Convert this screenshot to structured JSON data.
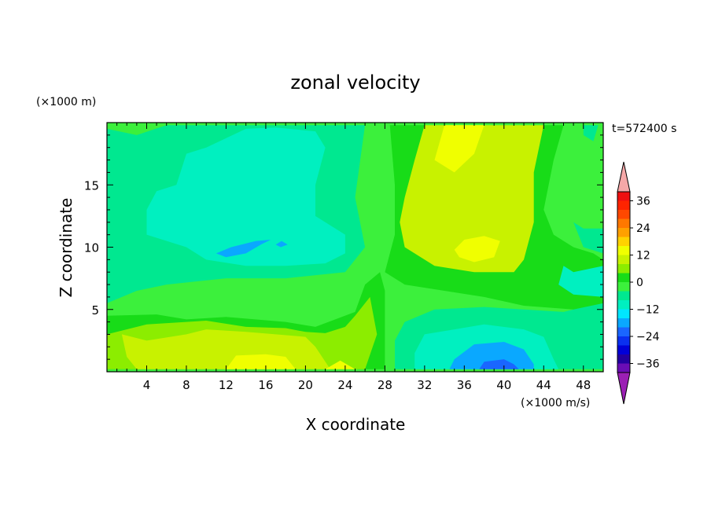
{
  "chart_data": {
    "type": "heatmap",
    "title": "zonal velocity",
    "time_label": "t=572400 s",
    "xlabel": "X coordinate",
    "ylabel": "Z coordinate",
    "x_unit": "(×1000 m/s)",
    "y_unit": "(×1000 m)",
    "xlim": [
      0,
      50
    ],
    "ylim": [
      0,
      20
    ],
    "x_ticks": [
      4,
      8,
      12,
      16,
      20,
      24,
      28,
      32,
      36,
      40,
      44,
      48
    ],
    "x_tick_labels": [
      "4",
      "8",
      "12",
      "16",
      "20",
      "24",
      "28",
      "32",
      "36",
      "40",
      "44",
      "48"
    ],
    "y_ticks": [
      5,
      10,
      15
    ],
    "y_tick_labels": [
      "5",
      "10",
      "15"
    ],
    "colorbar": {
      "levels": [
        -40,
        -36,
        -32,
        -28,
        -24,
        -20,
        -16,
        -12,
        -8,
        -4,
        0,
        4,
        8,
        12,
        16,
        20,
        24,
        28,
        32,
        36,
        40
      ],
      "colors": [
        "#6a0db5",
        "#2200a0",
        "#0000d8",
        "#0a30f0",
        "#1a66ff",
        "#0aa8ff",
        "#00e6ff",
        "#00f0c0",
        "#00e890",
        "#3cf03c",
        "#18dc18",
        "#8ced00",
        "#c8f200",
        "#f0ff00",
        "#ffd200",
        "#ffa000",
        "#ff7800",
        "#ff4800",
        "#ff2400",
        "#f01010"
      ],
      "under_color": "#9b1fb4",
      "over_color": "#f5a8a8",
      "tick_values": [
        -36,
        -24,
        -12,
        0,
        12,
        24,
        36
      ],
      "tick_labels": [
        "−36",
        "−24",
        "−12",
        "0",
        "12",
        "24",
        "36"
      ]
    },
    "regions": [
      {
        "value": -6,
        "points": [
          [
            0,
            5.5
          ],
          [
            3,
            6.5
          ],
          [
            6,
            7
          ],
          [
            12,
            7.5
          ],
          [
            18,
            7.5
          ],
          [
            24,
            8
          ],
          [
            26,
            10
          ],
          [
            25,
            14
          ],
          [
            26,
            19.8
          ],
          [
            24,
            19.8
          ],
          [
            22,
            19.8
          ],
          [
            16,
            19.8
          ],
          [
            10,
            19.8
          ],
          [
            6,
            19.8
          ],
          [
            3,
            19
          ],
          [
            0,
            19.5
          ]
        ]
      },
      {
        "value": -10,
        "points": [
          [
            4,
            13
          ],
          [
            4,
            11
          ],
          [
            8,
            10
          ],
          [
            10,
            9
          ],
          [
            14,
            8.5
          ],
          [
            18,
            8.5
          ],
          [
            22,
            8.7
          ],
          [
            24,
            9.5
          ],
          [
            24,
            11
          ],
          [
            21,
            12.5
          ],
          [
            21,
            15
          ],
          [
            22,
            18
          ],
          [
            21,
            19.3
          ],
          [
            17,
            19.6
          ],
          [
            14,
            19.5
          ],
          [
            10,
            18
          ],
          [
            8,
            17.5
          ],
          [
            7,
            15
          ],
          [
            5,
            14.5
          ]
        ]
      },
      {
        "value": -18,
        "points": [
          [
            11,
            9.5
          ],
          [
            12,
            9.2
          ],
          [
            14,
            9.5
          ],
          [
            15.5,
            10.2
          ],
          [
            16.5,
            10.6
          ],
          [
            15,
            10.5
          ],
          [
            12.5,
            10
          ]
        ]
      },
      {
        "value": -18,
        "points": [
          [
            17,
            10.2
          ],
          [
            17.5,
            10
          ],
          [
            18.2,
            10.2
          ],
          [
            17.6,
            10.5
          ]
        ]
      },
      {
        "value": 2,
        "points": [
          [
            0,
            4.5
          ],
          [
            5,
            4.6
          ],
          [
            8,
            4.2
          ],
          [
            12,
            4.4
          ],
          [
            18,
            4
          ],
          [
            21,
            3.6
          ],
          [
            23,
            4.2
          ],
          [
            25,
            4.8
          ],
          [
            26,
            7
          ],
          [
            27.5,
            8
          ],
          [
            28,
            6.5
          ],
          [
            28,
            0.2
          ],
          [
            0,
            0.2
          ]
        ]
      },
      {
        "value": 6,
        "points": [
          [
            0,
            3
          ],
          [
            4,
            3.8
          ],
          [
            10,
            4.1
          ],
          [
            14,
            3.6
          ],
          [
            18,
            3.5
          ],
          [
            20,
            3.2
          ],
          [
            22,
            3.1
          ],
          [
            24,
            3.6
          ],
          [
            25,
            4.5
          ],
          [
            26.5,
            6
          ],
          [
            27.2,
            3
          ],
          [
            26,
            0.2
          ],
          [
            0,
            0.2
          ]
        ]
      },
      {
        "value": 10,
        "points": [
          [
            1.5,
            3
          ],
          [
            4,
            2.5
          ],
          [
            8,
            3
          ],
          [
            10,
            3.4
          ],
          [
            14,
            3.2
          ],
          [
            17,
            3
          ],
          [
            20,
            2.8
          ],
          [
            21,
            2
          ],
          [
            22.5,
            0.2
          ],
          [
            3,
            0.2
          ],
          [
            2,
            1.2
          ]
        ]
      },
      {
        "value": 14,
        "points": [
          [
            12,
            0.2
          ],
          [
            13,
            1.3
          ],
          [
            16,
            1.4
          ],
          [
            18,
            1.2
          ],
          [
            19,
            0.2
          ]
        ]
      },
      {
        "value": 14,
        "points": [
          [
            22,
            0.2
          ],
          [
            23.5,
            0.9
          ],
          [
            25,
            0.2
          ]
        ]
      },
      {
        "value": -6,
        "points": [
          [
            29,
            0.2
          ],
          [
            29,
            2.5
          ],
          [
            30,
            4
          ],
          [
            33,
            5
          ],
          [
            38,
            5.2
          ],
          [
            42,
            5
          ],
          [
            46,
            4.8
          ],
          [
            48,
            5.2
          ],
          [
            50,
            5.5
          ],
          [
            50,
            0.2
          ]
        ]
      },
      {
        "value": -10,
        "points": [
          [
            31,
            0.2
          ],
          [
            31,
            1.5
          ],
          [
            32,
            3
          ],
          [
            35,
            3.4
          ],
          [
            38,
            3.8
          ],
          [
            42,
            3.4
          ],
          [
            44,
            2.8
          ],
          [
            45,
            1
          ],
          [
            45.5,
            0.2
          ]
        ]
      },
      {
        "value": -18,
        "points": [
          [
            34.5,
            0.2
          ],
          [
            35,
            1
          ],
          [
            37,
            2.2
          ],
          [
            40,
            2.4
          ],
          [
            42,
            1.8
          ],
          [
            43,
            0.6
          ],
          [
            43,
            0.2
          ]
        ]
      },
      {
        "value": -22,
        "points": [
          [
            37.5,
            0.2
          ],
          [
            38,
            0.8
          ],
          [
            40,
            1
          ],
          [
            41,
            0.6
          ],
          [
            41.5,
            0.2
          ]
        ]
      },
      {
        "value": -10,
        "points": [
          [
            45,
            5.8
          ],
          [
            46,
            5.3
          ],
          [
            46.5,
            6
          ],
          [
            45.5,
            6.4
          ]
        ]
      },
      {
        "value": 2,
        "points": [
          [
            28,
            8
          ],
          [
            29,
            11
          ],
          [
            29,
            15
          ],
          [
            28.5,
            19.8
          ],
          [
            46,
            19.8
          ],
          [
            45,
            17
          ],
          [
            44,
            13
          ],
          [
            45,
            11
          ],
          [
            47,
            10
          ],
          [
            49,
            9.5
          ],
          [
            50,
            9
          ],
          [
            50,
            5.5
          ],
          [
            47,
            5
          ],
          [
            42,
            5.3
          ],
          [
            38,
            6
          ],
          [
            34,
            6.5
          ],
          [
            30,
            7
          ]
        ]
      },
      {
        "value": 10,
        "points": [
          [
            29.5,
            12
          ],
          [
            30,
            14
          ],
          [
            31,
            17
          ],
          [
            32,
            19.8
          ],
          [
            44,
            19.8
          ],
          [
            43,
            16
          ],
          [
            43,
            12
          ],
          [
            42,
            9
          ],
          [
            41,
            8
          ],
          [
            37,
            8
          ],
          [
            33,
            8.5
          ],
          [
            30,
            10
          ]
        ]
      },
      {
        "value": 14,
        "points": [
          [
            33,
            17
          ],
          [
            34,
            19.8
          ],
          [
            38,
            19.8
          ],
          [
            37,
            17.5
          ],
          [
            35,
            16
          ]
        ]
      },
      {
        "value": 14,
        "points": [
          [
            35,
            9.8
          ],
          [
            36,
            10.6
          ],
          [
            38,
            10.9
          ],
          [
            39.6,
            10.5
          ],
          [
            39,
            9.2
          ],
          [
            37,
            8.8
          ],
          [
            35.5,
            9.2
          ]
        ]
      },
      {
        "value": -10,
        "points": [
          [
            46,
            8.5
          ],
          [
            47,
            8
          ],
          [
            50,
            8.5
          ],
          [
            50,
            6
          ],
          [
            47,
            6.2
          ],
          [
            45.5,
            7
          ]
        ]
      },
      {
        "value": -6,
        "points": [
          [
            47,
            12
          ],
          [
            48,
            11.5
          ],
          [
            50,
            11.5
          ],
          [
            50,
            9.5
          ],
          [
            48,
            10
          ]
        ]
      },
      {
        "value": -6,
        "points": [
          [
            48,
            19
          ],
          [
            49,
            18.5
          ],
          [
            49.5,
            19.8
          ],
          [
            48,
            19.8
          ]
        ]
      }
    ]
  }
}
